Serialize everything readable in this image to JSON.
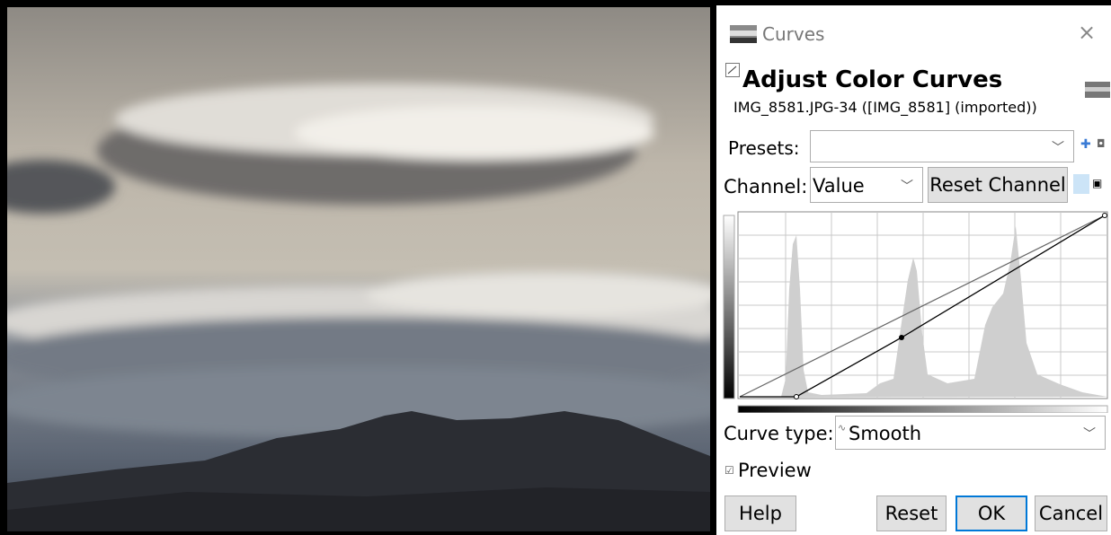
{
  "window": {
    "title": "Curves"
  },
  "header": {
    "title": "Adjust Color Curves",
    "subtitle": "IMG_8581.JPG-34 ([IMG_8581] (imported))"
  },
  "presets": {
    "label": "Presets:"
  },
  "channel": {
    "label": "Channel:",
    "value": "Value",
    "reset_button": "Reset Channel"
  },
  "curve_type": {
    "label": "Curve type:",
    "value": "Smooth"
  },
  "preview": {
    "label": "Preview"
  },
  "buttons": {
    "help": "Help",
    "reset": "Reset",
    "ok": "OK",
    "cancel": "Cancel"
  }
}
